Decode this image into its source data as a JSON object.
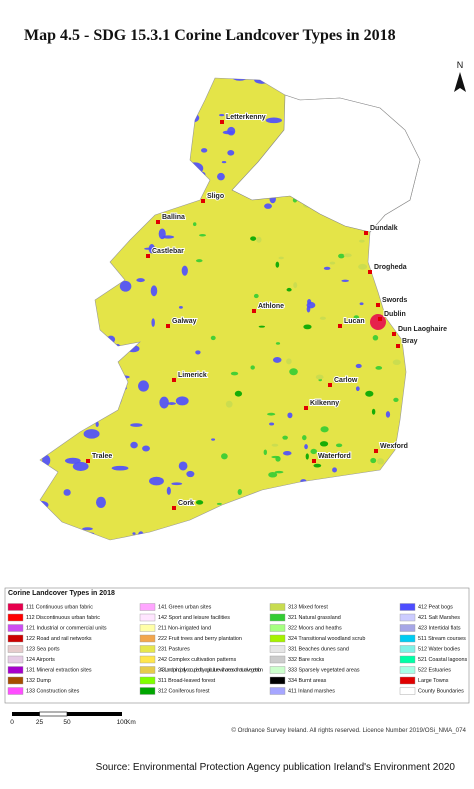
{
  "title": "Map 4.5 - SDG 15.3.1 Corine Landcover Types in 2018",
  "north_label": "N",
  "towns": [
    "Letterkenny",
    "Sligo",
    "Ballina",
    "Dundalk",
    "Castlebar",
    "Drogheda",
    "Swords",
    "Dublin",
    "Dun Laoghaire",
    "Bray",
    "Galway",
    "Athlone",
    "Lucan",
    "Carlow",
    "Limerick",
    "Kilkenny",
    "Wexford",
    "Waterford",
    "Tralee",
    "Cork"
  ],
  "legend": {
    "title": "Corine Landcover Types in 2018",
    "items": [
      {
        "label": "111 Continuous urban fabric",
        "color": "#e6004d"
      },
      {
        "label": "112 Discontinuous urban fabric",
        "color": "#ff0000"
      },
      {
        "label": "121 Industrial or commercial units",
        "color": "#cc4df2"
      },
      {
        "label": "122 Road and rail networks",
        "color": "#cc0000"
      },
      {
        "label": "123 Sea ports",
        "color": "#e6cccc"
      },
      {
        "label": "124 Airports",
        "color": "#e6cce6"
      },
      {
        "label": "131 Mineral extraction sites",
        "color": "#a600cc"
      },
      {
        "label": "132 Dump",
        "color": "#a64d00"
      },
      {
        "label": "133 Construction sites",
        "color": "#ff4dff"
      },
      {
        "label": "141 Green urban sites",
        "color": "#ffa6ff"
      },
      {
        "label": "142 Sport and leisure facilities",
        "color": "#ffe6ff"
      },
      {
        "label": "211 Non-irrigated land",
        "color": "#ffffa8"
      },
      {
        "label": "222 Fruit trees and berry plantation",
        "color": "#f2a64d"
      },
      {
        "label": "231 Pastures",
        "color": "#e6e64d"
      },
      {
        "label": "242 Complex cultivation patterns",
        "color": "#ffe64d"
      },
      {
        "label": "243 Land principally occupied by agriculture with areas of natural vegetation",
        "color": "#e6cc4d"
      },
      {
        "label": "311 Broad-leaved forest",
        "color": "#80ff00"
      },
      {
        "label": "312 Coniferous forest",
        "color": "#00a600"
      },
      {
        "label": "313 Mixed forest",
        "color": "#c8dc50"
      },
      {
        "label": "321 Natural grassland",
        "color": "#33cc33"
      },
      {
        "label": "322 Moors and heaths",
        "color": "#a6ff80"
      },
      {
        "label": "324 Transitional woodland scrub",
        "color": "#a6f200"
      },
      {
        "label": "331 Beaches dunes sand",
        "color": "#e6e6e6"
      },
      {
        "label": "332 Bare rocks",
        "color": "#cccccc"
      },
      {
        "label": "333 Sparsely vegetated areas",
        "color": "#ccffcc"
      },
      {
        "label": "334 Burnt areas",
        "color": "#000000"
      },
      {
        "label": "411 Inland marshes",
        "color": "#a6a6ff"
      },
      {
        "label": "412 Peat bogs",
        "color": "#4d4dff"
      },
      {
        "label": "421 Salt Marshes",
        "color": "#ccccff"
      },
      {
        "label": "423 Intertidal flats",
        "color": "#a6a6e6"
      },
      {
        "label": "511 Stream courses",
        "color": "#00ccf2"
      },
      {
        "label": "512 Water bodies",
        "color": "#80f2e6"
      },
      {
        "label": "521 Coastal lagoons",
        "color": "#00ffa6"
      },
      {
        "label": "522 Estuaries",
        "color": "#a6ffe6"
      },
      {
        "label": "Large Towns",
        "color": "#e00000"
      },
      {
        "label": "County Boundaries",
        "color": "#ffffff"
      }
    ]
  },
  "scale_bar": {
    "labels": [
      "0",
      "25",
      "50",
      "100"
    ],
    "unit": "Km"
  },
  "copyright": "© Ordnance Survey Ireland. All rights reserved. Licence Number 2019/OSi_NMA_074",
  "source": "Source:  Environmental Protection Agency publication Ireland's Environment 2020"
}
